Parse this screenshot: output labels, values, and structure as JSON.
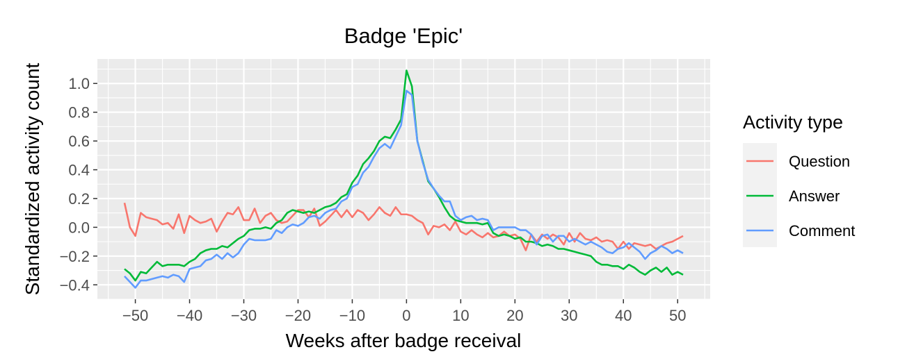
{
  "chart_data": {
    "type": "line",
    "title": "Badge 'Epic'",
    "xlabel": "Weeks after badge receival",
    "ylabel": "Standardized activity count",
    "xlim": [
      -57,
      56
    ],
    "ylim": [
      -0.5,
      1.17
    ],
    "x_ticks": [
      -50,
      -40,
      -30,
      -20,
      -10,
      0,
      10,
      20,
      30,
      40,
      50
    ],
    "x_tick_labels": [
      "−50",
      "−40",
      "−30",
      "−20",
      "−10",
      "0",
      "10",
      "20",
      "30",
      "40",
      "50"
    ],
    "y_ticks": [
      -0.4,
      -0.2,
      0.0,
      0.2,
      0.4,
      0.6,
      0.8,
      1.0
    ],
    "y_tick_labels": [
      "−0.4",
      "−0.2",
      "0.0",
      "0.2",
      "0.4",
      "0.6",
      "0.8",
      "1.0"
    ],
    "grid": true,
    "legend_position": "right",
    "legend_title": "Activity type",
    "series": [
      {
        "name": "Question",
        "color": "#F8766D",
        "points": [
          [
            -52,
            0.17
          ],
          [
            -51,
            0.0
          ],
          [
            -50,
            -0.06
          ],
          [
            -49,
            0.1
          ],
          [
            -48,
            0.07
          ],
          [
            -47,
            0.06
          ],
          [
            -46,
            0.05
          ],
          [
            -45,
            0.02
          ],
          [
            -44,
            0.03
          ],
          [
            -43,
            -0.01
          ],
          [
            -42,
            0.09
          ],
          [
            -41,
            -0.04
          ],
          [
            -40,
            0.08
          ],
          [
            -39,
            0.05
          ],
          [
            -38,
            0.03
          ],
          [
            -37,
            0.04
          ],
          [
            -36,
            0.06
          ],
          [
            -35,
            -0.03
          ],
          [
            -34,
            0.04
          ],
          [
            -33,
            0.1
          ],
          [
            -32,
            0.09
          ],
          [
            -31,
            0.14
          ],
          [
            -30,
            0.05
          ],
          [
            -29,
            0.05
          ],
          [
            -28,
            0.13
          ],
          [
            -27,
            0.03
          ],
          [
            -26,
            0.08
          ],
          [
            -25,
            0.1
          ],
          [
            -24,
            0.05
          ],
          [
            -23,
            0.03
          ],
          [
            -22,
            0.04
          ],
          [
            -21,
            0.08
          ],
          [
            -20,
            0.12
          ],
          [
            -19,
            0.12
          ],
          [
            -18,
            0.07
          ],
          [
            -17,
            0.13
          ],
          [
            -16,
            0.01
          ],
          [
            -15,
            0.04
          ],
          [
            -14,
            0.08
          ],
          [
            -13,
            0.12
          ],
          [
            -12,
            0.07
          ],
          [
            -11,
            0.12
          ],
          [
            -10,
            0.07
          ],
          [
            -9,
            0.12
          ],
          [
            -8,
            0.1
          ],
          [
            -7,
            0.05
          ],
          [
            -6,
            0.09
          ],
          [
            -5,
            0.14
          ],
          [
            -4,
            0.1
          ],
          [
            -3,
            0.08
          ],
          [
            -2,
            0.14
          ],
          [
            -1,
            0.09
          ],
          [
            0,
            0.09
          ],
          [
            1,
            0.08
          ],
          [
            2,
            0.05
          ],
          [
            3,
            0.03
          ],
          [
            4,
            -0.05
          ],
          [
            5,
            0.01
          ],
          [
            6,
            0.0
          ],
          [
            7,
            0.02
          ],
          [
            8,
            -0.02
          ],
          [
            9,
            0.04
          ],
          [
            10,
            -0.03
          ],
          [
            11,
            -0.05
          ],
          [
            12,
            -0.02
          ],
          [
            13,
            -0.05
          ],
          [
            14,
            -0.07
          ],
          [
            15,
            -0.04
          ],
          [
            16,
            -0.07
          ],
          [
            17,
            -0.06
          ],
          [
            18,
            -0.03
          ],
          [
            19,
            -0.06
          ],
          [
            20,
            -0.05
          ],
          [
            21,
            -0.08
          ],
          [
            22,
            -0.16
          ],
          [
            23,
            -0.05
          ],
          [
            24,
            -0.1
          ],
          [
            25,
            -0.05
          ],
          [
            26,
            -0.08
          ],
          [
            27,
            -0.05
          ],
          [
            28,
            -0.07
          ],
          [
            29,
            -0.12
          ],
          [
            30,
            -0.04
          ],
          [
            31,
            -0.1
          ],
          [
            32,
            -0.04
          ],
          [
            33,
            -0.08
          ],
          [
            34,
            -0.09
          ],
          [
            35,
            -0.07
          ],
          [
            36,
            -0.1
          ],
          [
            37,
            -0.09
          ],
          [
            38,
            -0.1
          ],
          [
            39,
            -0.15
          ],
          [
            40,
            -0.1
          ],
          [
            41,
            -0.15
          ],
          [
            42,
            -0.11
          ],
          [
            43,
            -0.12
          ],
          [
            44,
            -0.13
          ],
          [
            45,
            -0.12
          ],
          [
            46,
            -0.15
          ],
          [
            47,
            -0.13
          ],
          [
            48,
            -0.11
          ],
          [
            49,
            -0.1
          ],
          [
            50,
            -0.08
          ],
          [
            51,
            -0.06
          ]
        ]
      },
      {
        "name": "Answer",
        "color": "#00BA38",
        "points": [
          [
            -52,
            -0.29
          ],
          [
            -51,
            -0.32
          ],
          [
            -50,
            -0.37
          ],
          [
            -49,
            -0.31
          ],
          [
            -48,
            -0.32
          ],
          [
            -47,
            -0.28
          ],
          [
            -46,
            -0.24
          ],
          [
            -45,
            -0.27
          ],
          [
            -44,
            -0.26
          ],
          [
            -43,
            -0.26
          ],
          [
            -42,
            -0.26
          ],
          [
            -41,
            -0.27
          ],
          [
            -40,
            -0.24
          ],
          [
            -39,
            -0.22
          ],
          [
            -38,
            -0.18
          ],
          [
            -37,
            -0.16
          ],
          [
            -36,
            -0.15
          ],
          [
            -35,
            -0.15
          ],
          [
            -34,
            -0.13
          ],
          [
            -33,
            -0.14
          ],
          [
            -32,
            -0.11
          ],
          [
            -31,
            -0.08
          ],
          [
            -30,
            -0.06
          ],
          [
            -29,
            -0.02
          ],
          [
            -28,
            -0.01
          ],
          [
            -27,
            -0.01
          ],
          [
            -26,
            0.0
          ],
          [
            -25,
            -0.01
          ],
          [
            -24,
            0.03
          ],
          [
            -23,
            0.05
          ],
          [
            -22,
            0.1
          ],
          [
            -21,
            0.12
          ],
          [
            -20,
            0.11
          ],
          [
            -19,
            0.1
          ],
          [
            -18,
            0.11
          ],
          [
            -17,
            0.1
          ],
          [
            -16,
            0.12
          ],
          [
            -15,
            0.14
          ],
          [
            -14,
            0.15
          ],
          [
            -13,
            0.17
          ],
          [
            -12,
            0.21
          ],
          [
            -11,
            0.23
          ],
          [
            -10,
            0.31
          ],
          [
            -9,
            0.36
          ],
          [
            -8,
            0.44
          ],
          [
            -7,
            0.48
          ],
          [
            -6,
            0.53
          ],
          [
            -5,
            0.6
          ],
          [
            -4,
            0.63
          ],
          [
            -3,
            0.62
          ],
          [
            -2,
            0.68
          ],
          [
            -1,
            0.75
          ],
          [
            0,
            1.09
          ],
          [
            1,
            0.98
          ],
          [
            2,
            0.6
          ],
          [
            3,
            0.46
          ],
          [
            4,
            0.32
          ],
          [
            5,
            0.27
          ],
          [
            6,
            0.21
          ],
          [
            7,
            0.14
          ],
          [
            8,
            0.08
          ],
          [
            9,
            0.05
          ],
          [
            10,
            0.04
          ],
          [
            11,
            0.03
          ],
          [
            12,
            0.03
          ],
          [
            13,
            0.03
          ],
          [
            14,
            0.02
          ],
          [
            15,
            0.03
          ],
          [
            16,
            -0.04
          ],
          [
            17,
            -0.06
          ],
          [
            18,
            -0.05
          ],
          [
            19,
            -0.06
          ],
          [
            20,
            -0.08
          ],
          [
            21,
            -0.07
          ],
          [
            22,
            -0.1
          ],
          [
            23,
            -0.1
          ],
          [
            24,
            -0.11
          ],
          [
            25,
            -0.13
          ],
          [
            26,
            -0.12
          ],
          [
            27,
            -0.13
          ],
          [
            28,
            -0.15
          ],
          [
            29,
            -0.15
          ],
          [
            30,
            -0.16
          ],
          [
            31,
            -0.17
          ],
          [
            32,
            -0.18
          ],
          [
            33,
            -0.19
          ],
          [
            34,
            -0.2
          ],
          [
            35,
            -0.24
          ],
          [
            36,
            -0.26
          ],
          [
            37,
            -0.26
          ],
          [
            38,
            -0.27
          ],
          [
            39,
            -0.27
          ],
          [
            40,
            -0.29
          ],
          [
            41,
            -0.26
          ],
          [
            42,
            -0.28
          ],
          [
            43,
            -0.31
          ],
          [
            44,
            -0.33
          ],
          [
            45,
            -0.3
          ],
          [
            46,
            -0.28
          ],
          [
            47,
            -0.31
          ],
          [
            48,
            -0.28
          ],
          [
            49,
            -0.33
          ],
          [
            50,
            -0.31
          ],
          [
            51,
            -0.33
          ]
        ]
      },
      {
        "name": "Comment",
        "color": "#619CFF",
        "points": [
          [
            -52,
            -0.34
          ],
          [
            -51,
            -0.38
          ],
          [
            -50,
            -0.42
          ],
          [
            -49,
            -0.37
          ],
          [
            -48,
            -0.37
          ],
          [
            -47,
            -0.36
          ],
          [
            -46,
            -0.35
          ],
          [
            -45,
            -0.34
          ],
          [
            -44,
            -0.35
          ],
          [
            -43,
            -0.33
          ],
          [
            -42,
            -0.34
          ],
          [
            -41,
            -0.38
          ],
          [
            -40,
            -0.29
          ],
          [
            -39,
            -0.28
          ],
          [
            -38,
            -0.27
          ],
          [
            -37,
            -0.23
          ],
          [
            -36,
            -0.22
          ],
          [
            -35,
            -0.19
          ],
          [
            -34,
            -0.22
          ],
          [
            -33,
            -0.18
          ],
          [
            -32,
            -0.21
          ],
          [
            -31,
            -0.18
          ],
          [
            -30,
            -0.12
          ],
          [
            -29,
            -0.08
          ],
          [
            -28,
            -0.09
          ],
          [
            -27,
            -0.09
          ],
          [
            -26,
            -0.09
          ],
          [
            -25,
            -0.08
          ],
          [
            -24,
            -0.02
          ],
          [
            -23,
            -0.04
          ],
          [
            -22,
            0.0
          ],
          [
            -21,
            0.02
          ],
          [
            -20,
            0.01
          ],
          [
            -19,
            0.03
          ],
          [
            -18,
            0.07
          ],
          [
            -17,
            0.08
          ],
          [
            -16,
            0.06
          ],
          [
            -15,
            0.1
          ],
          [
            -14,
            0.12
          ],
          [
            -13,
            0.13
          ],
          [
            -12,
            0.18
          ],
          [
            -11,
            0.2
          ],
          [
            -10,
            0.28
          ],
          [
            -9,
            0.3
          ],
          [
            -8,
            0.38
          ],
          [
            -7,
            0.42
          ],
          [
            -6,
            0.49
          ],
          [
            -5,
            0.55
          ],
          [
            -4,
            0.58
          ],
          [
            -3,
            0.55
          ],
          [
            -2,
            0.63
          ],
          [
            -1,
            0.71
          ],
          [
            0,
            0.95
          ],
          [
            1,
            0.92
          ],
          [
            2,
            0.6
          ],
          [
            3,
            0.45
          ],
          [
            4,
            0.33
          ],
          [
            5,
            0.27
          ],
          [
            6,
            0.22
          ],
          [
            7,
            0.18
          ],
          [
            8,
            0.18
          ],
          [
            9,
            0.08
          ],
          [
            10,
            0.05
          ],
          [
            11,
            0.07
          ],
          [
            12,
            0.08
          ],
          [
            13,
            0.05
          ],
          [
            14,
            0.06
          ],
          [
            15,
            0.05
          ],
          [
            16,
            -0.02
          ],
          [
            17,
            0.0
          ],
          [
            18,
            0.0
          ],
          [
            19,
            0.0
          ],
          [
            20,
            0.0
          ],
          [
            21,
            -0.02
          ],
          [
            22,
            -0.02
          ],
          [
            23,
            -0.05
          ],
          [
            24,
            -0.12
          ],
          [
            25,
            -0.06
          ],
          [
            26,
            -0.05
          ],
          [
            27,
            -0.1
          ],
          [
            28,
            -0.06
          ],
          [
            29,
            -0.06
          ],
          [
            30,
            -0.1
          ],
          [
            31,
            -0.08
          ],
          [
            32,
            -0.1
          ],
          [
            33,
            -0.12
          ],
          [
            34,
            -0.1
          ],
          [
            35,
            -0.12
          ],
          [
            36,
            -0.14
          ],
          [
            37,
            -0.17
          ],
          [
            38,
            -0.18
          ],
          [
            39,
            -0.15
          ],
          [
            40,
            -0.14
          ],
          [
            41,
            -0.11
          ],
          [
            42,
            -0.14
          ],
          [
            43,
            -0.17
          ],
          [
            44,
            -0.22
          ],
          [
            45,
            -0.18
          ],
          [
            46,
            -0.16
          ],
          [
            47,
            -0.13
          ],
          [
            48,
            -0.15
          ],
          [
            49,
            -0.18
          ],
          [
            50,
            -0.16
          ],
          [
            51,
            -0.18
          ]
        ]
      }
    ]
  }
}
